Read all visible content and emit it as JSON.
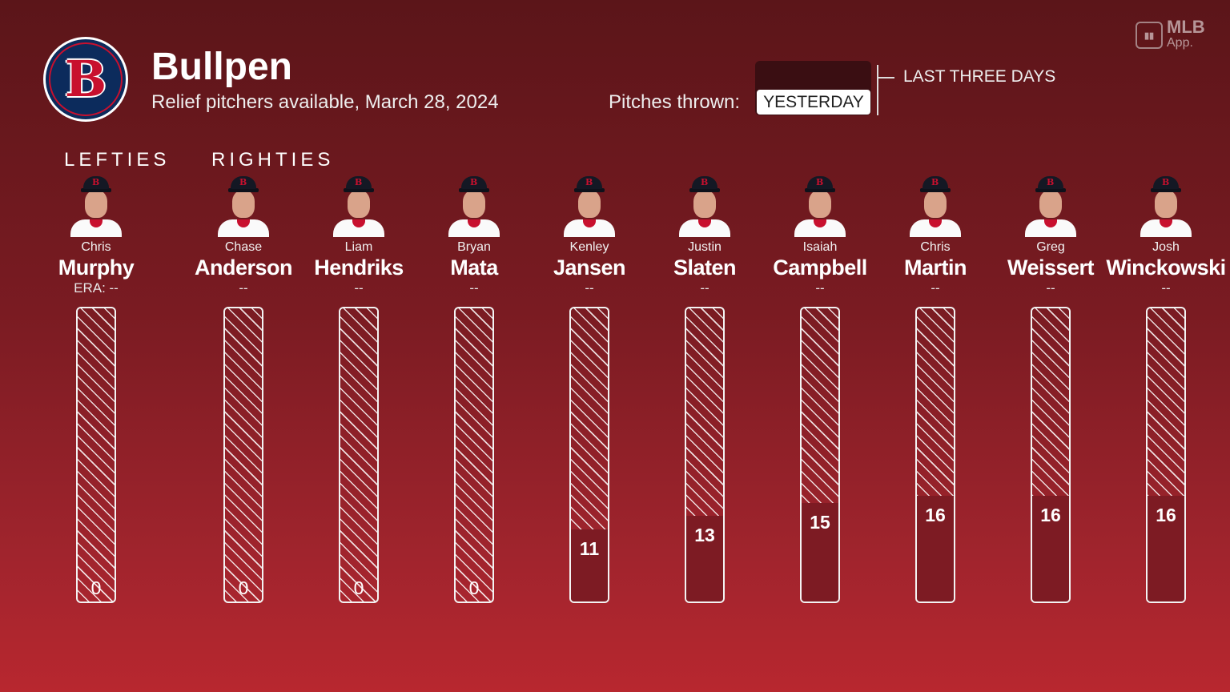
{
  "header": {
    "team_logo_letter": "B",
    "title": "Bullpen",
    "subtitle": "Relief pitchers available, March 28, 2024",
    "pitches_label": "Pitches thrown:",
    "toggle_selected": "YESTERDAY",
    "toggle_other": "LAST THREE DAYS"
  },
  "brand": {
    "icon": "mlb-app-icon",
    "name": "MLB",
    "sub": "App."
  },
  "groups": {
    "lefties": "LEFTIES",
    "righties": "RIGHTIES"
  },
  "colors": {
    "fill": "#7d1b23",
    "cap": "#141824",
    "logo_navy": "#0c2b5c",
    "logo_red": "#c8102e"
  },
  "max_scale": 45,
  "pitchers": [
    {
      "first": "Chris",
      "last": "Murphy",
      "era": "ERA: --",
      "pitches": 0
    },
    {
      "first": "Chase",
      "last": "Anderson",
      "era": "--",
      "pitches": 0
    },
    {
      "first": "Liam",
      "last": "Hendriks",
      "era": "--",
      "pitches": 0
    },
    {
      "first": "Bryan",
      "last": "Mata",
      "era": "--",
      "pitches": 0
    },
    {
      "first": "Kenley",
      "last": "Jansen",
      "era": "--",
      "pitches": 11
    },
    {
      "first": "Justin",
      "last": "Slaten",
      "era": "--",
      "pitches": 13
    },
    {
      "first": "Isaiah",
      "last": "Campbell",
      "era": "--",
      "pitches": 15
    },
    {
      "first": "Chris",
      "last": "Martin",
      "era": "--",
      "pitches": 16
    },
    {
      "first": "Greg",
      "last": "Weissert",
      "era": "--",
      "pitches": 16
    },
    {
      "first": "Josh",
      "last": "Winckowski",
      "era": "--",
      "pitches": 16
    }
  ]
}
